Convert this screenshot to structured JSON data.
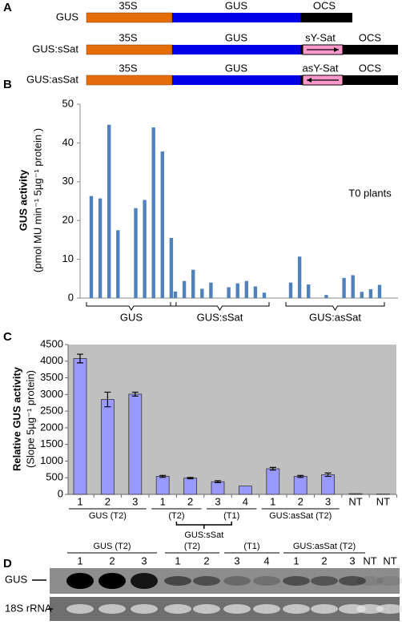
{
  "panel_labels": [
    "A",
    "B",
    "C",
    "D"
  ],
  "constructs": [
    {
      "name": "GUS",
      "parts": [
        "35S",
        "GUS",
        "OCS"
      ]
    },
    {
      "name": "GUS:sSat",
      "parts": [
        "35S",
        "GUS",
        "sY-Sat",
        "OCS"
      ]
    },
    {
      "name": "GUS:asSat",
      "parts": [
        "35S",
        "GUS",
        "asY-Sat",
        "OCS"
      ]
    }
  ],
  "chart_data": [
    {
      "type": "bar",
      "ylabel": [
        "GUS activity",
        "(pmol MU min⁻¹ 5µg⁻¹ protein )"
      ],
      "annotation": "T0 plants",
      "color": "#4f81bd",
      "ylim": [
        0,
        50
      ],
      "yticks": [
        0,
        10,
        20,
        30,
        40,
        50
      ],
      "groups": [
        {
          "label": "GUS",
          "values": [
            26.3,
            25.7,
            44.7,
            17.5,
            null,
            23.2,
            25.3,
            44.0,
            37.8,
            15.5
          ]
        },
        {
          "label": "GUS:sSat",
          "values": [
            1.7,
            4.4,
            7.3,
            2.4,
            4.0,
            null,
            2.8,
            3.8,
            4.4,
            3.0,
            1.4
          ]
        },
        {
          "label": "GUS:asSat",
          "values": [
            4.0,
            10.7,
            3.5,
            null,
            0.8,
            null,
            5.2,
            5.9,
            1.6,
            2.3,
            3.4
          ]
        }
      ]
    },
    {
      "type": "bar",
      "ylabel": [
        "Relative GUS activity",
        "(Slope 5µg⁻¹ protein)"
      ],
      "color": "#9999ff",
      "background": "#c0c0c0",
      "ylim": [
        0,
        4500
      ],
      "yticks": [
        0,
        500,
        1000,
        1500,
        2000,
        2500,
        3000,
        3500,
        4000,
        4500
      ],
      "categories": [
        "1",
        "2",
        "3",
        "1",
        "2",
        "3",
        "4",
        "1",
        "2",
        "3",
        "NT",
        "NT"
      ],
      "values": [
        4080,
        2850,
        3010,
        540,
        490,
        380,
        250,
        770,
        540,
        590,
        20,
        10
      ],
      "errors": [
        130,
        220,
        60,
        30,
        20,
        30,
        null,
        40,
        30,
        50,
        null,
        null
      ],
      "group_labels": [
        "GUS (T2)",
        "(T2)",
        "(T1)",
        "GUS:asSat (T2)"
      ],
      "super_group_label": "GUS:sSat"
    }
  ],
  "blot": {
    "group_labels": [
      "GUS (T2)",
      "(T2)",
      "(T1)",
      "GUS:asSat (T2)"
    ],
    "lanes": [
      "1",
      "2",
      "3",
      "1",
      "2",
      "3",
      "4",
      "1",
      "2",
      "3",
      "NT",
      "NT"
    ],
    "rows": [
      "GUS",
      "18S rRNA"
    ]
  }
}
